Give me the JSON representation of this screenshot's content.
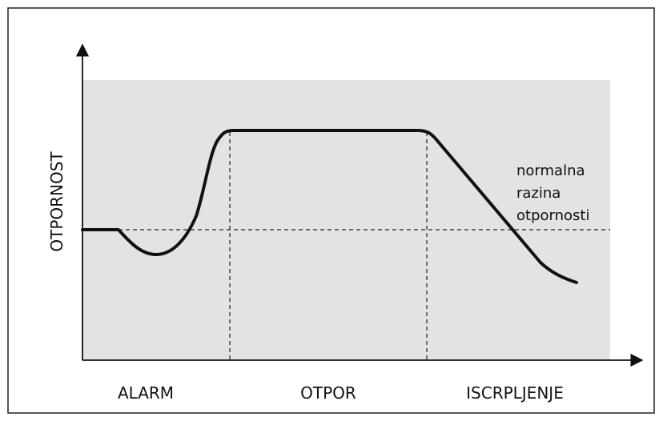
{
  "axis_label": "OTPORNOST",
  "annotation": [
    "normalna",
    "razina",
    "otpornosti"
  ],
  "phases": [
    "ALARM",
    "OTPOR",
    "ISCRPLJENJE"
  ]
}
